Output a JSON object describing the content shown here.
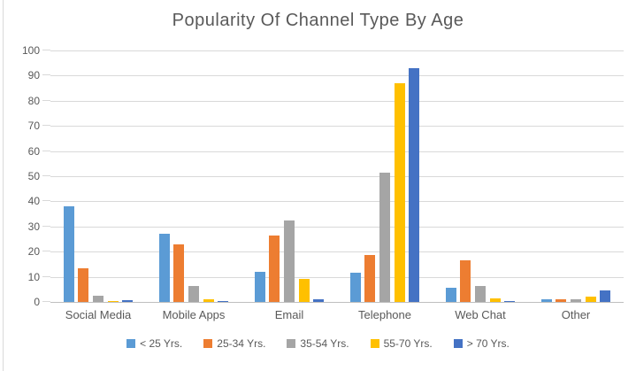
{
  "chart_data": {
    "type": "bar",
    "title": "Popularity Of Channel Type By Age",
    "categories": [
      "Social Media",
      "Mobile Apps",
      "Email",
      "Telephone",
      "Web Chat",
      "Other"
    ],
    "series": [
      {
        "name": "< 25 Yrs.",
        "color": "#5B9BD5",
        "values": [
          38,
          27,
          12,
          11.5,
          5.5,
          1
        ]
      },
      {
        "name": "25-34 Yrs.",
        "color": "#ED7D31",
        "values": [
          13.5,
          23,
          26.5,
          18.5,
          16.5,
          1
        ]
      },
      {
        "name": "35-54 Yrs.",
        "color": "#A5A5A5",
        "values": [
          2.5,
          6.5,
          32.5,
          51.5,
          6.5,
          1
        ]
      },
      {
        "name": "55-70 Yrs.",
        "color": "#FFC000",
        "values": [
          0.5,
          1,
          9,
          87,
          1.5,
          2
        ]
      },
      {
        "name": "> 70 Yrs.",
        "color": "#4472C4",
        "values": [
          0.75,
          0.5,
          1,
          93,
          0.5,
          4.5
        ]
      }
    ],
    "ylim": [
      0,
      100
    ],
    "yticks": [
      0,
      10,
      20,
      30,
      40,
      50,
      60,
      70,
      80,
      90,
      100
    ],
    "grid": true,
    "legend_position": "bottom",
    "colors": {
      "text": "#595959",
      "gridline": "#D9D9D9",
      "axis_line": "#BFBFBF",
      "background": "#FFFFFF"
    }
  }
}
